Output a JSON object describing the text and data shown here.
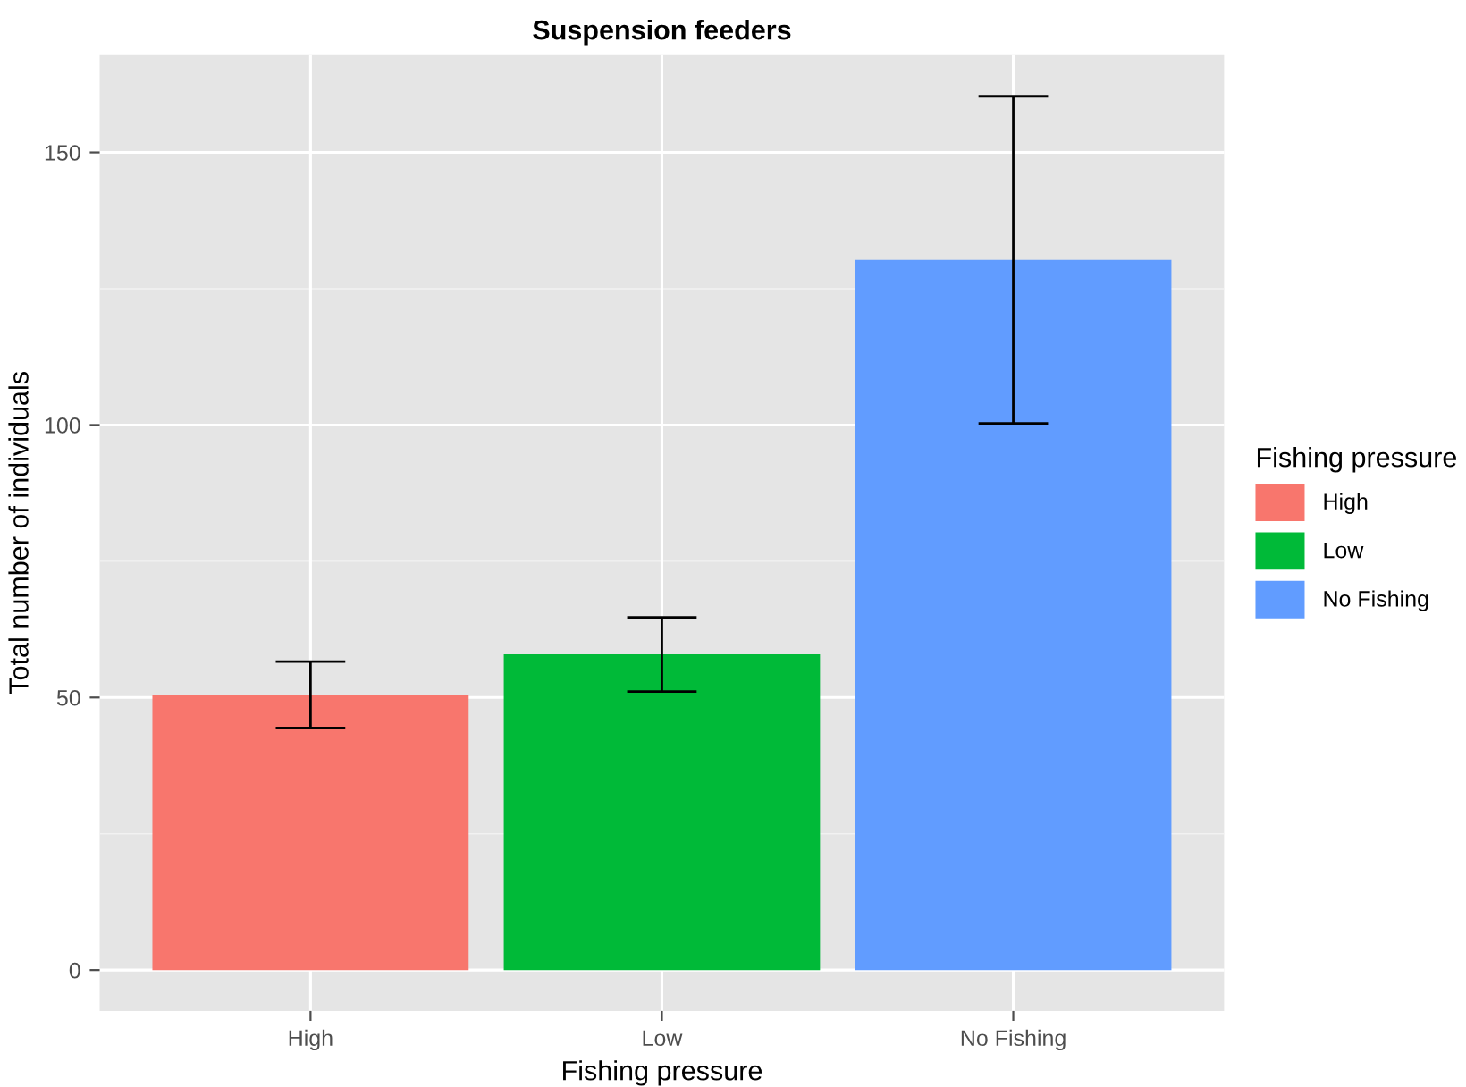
{
  "chart_data": {
    "type": "bar",
    "title": "Suspension feeders",
    "xlabel": "Fishing pressure",
    "ylabel": "Total number of individuals",
    "legend_title": "Fishing pressure",
    "categories": [
      "High",
      "Low",
      "No Fishing"
    ],
    "series": [
      {
        "name": "High",
        "color": "#f8766d",
        "values": [
          50.5,
          null,
          null
        ],
        "errors": [
          6.1,
          null,
          null
        ]
      },
      {
        "name": "Low",
        "color": "#00ba38",
        "values": [
          null,
          57.9,
          null
        ],
        "errors": [
          null,
          6.8,
          null
        ]
      },
      {
        "name": "No Fishing",
        "color": "#619cff",
        "values": [
          null,
          null,
          130.3
        ],
        "errors": [
          null,
          null,
          30
        ]
      }
    ],
    "ylim": [
      -7.5,
      168
    ],
    "yticks": [
      0,
      50,
      100,
      150
    ],
    "grid": true,
    "legend": "right"
  }
}
